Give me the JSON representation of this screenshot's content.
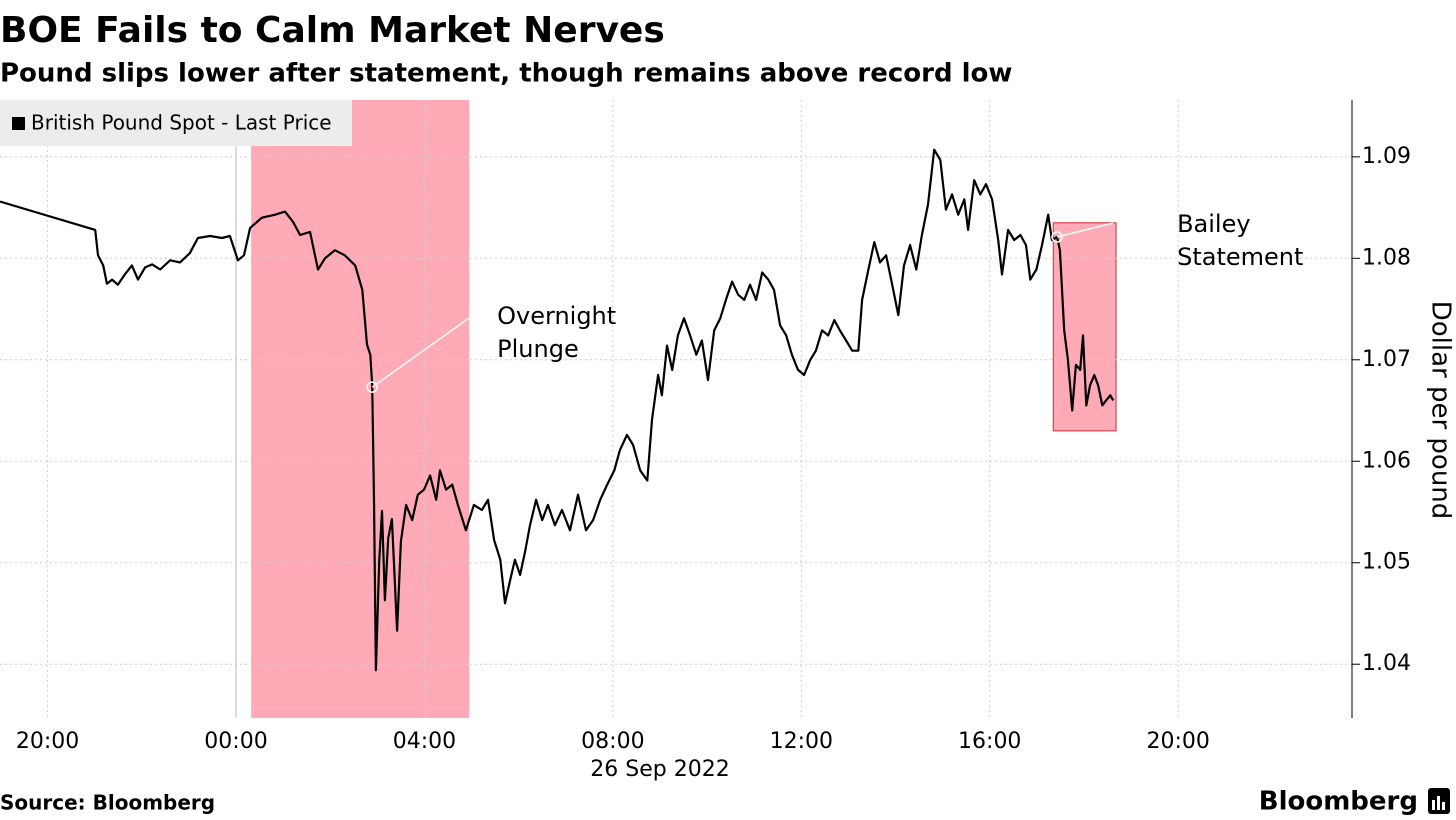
{
  "chart_data": {
    "type": "line",
    "title": "BOE Fails to Calm Market Nerves",
    "subtitle": "Pound slips lower after statement, though remains above record low",
    "y_label": "Dollar per pound",
    "date_label": "26 Sep 2022",
    "source": "Source: Bloomberg",
    "logo": "Bloomberg",
    "grid": true,
    "legend": "top-left",
    "xlim": [
      -5.01,
      23.69
    ],
    "xticks": [
      {
        "value": -4,
        "label": "20:00"
      },
      {
        "value": 0,
        "label": "00:00"
      },
      {
        "value": 4,
        "label": "04:00"
      },
      {
        "value": 8,
        "label": "08:00"
      },
      {
        "value": 12,
        "label": "12:00"
      },
      {
        "value": 16,
        "label": "16:00"
      },
      {
        "value": 20,
        "label": "20:00"
      }
    ],
    "ylim": [
      1.0347,
      1.0956
    ],
    "yticks": [
      1.04,
      1.05,
      1.06,
      1.07,
      1.08,
      1.09
    ],
    "highlights": [
      {
        "x": [
          0.32,
          4.95
        ],
        "color": "#ffaab6"
      },
      {
        "x": [
          17.35,
          18.68
        ],
        "y": [
          1.063,
          1.0835
        ],
        "color": "#ffaab6"
      }
    ],
    "annotations": [
      {
        "lines": [
          "Overnight",
          "Plunge"
        ],
        "x": 2.89,
        "y": 1.0673
      },
      {
        "lines": [
          "Bailey",
          "Statement"
        ],
        "x": 17.43,
        "y": 1.0821
      }
    ],
    "x": [
      -5.01,
      -2.99,
      -2.93,
      -2.82,
      -2.74,
      -2.63,
      -2.51,
      -2.36,
      -2.21,
      -2.08,
      -1.93,
      -1.78,
      -1.61,
      -1.4,
      -1.19,
      -0.98,
      -0.81,
      -0.55,
      -0.3,
      -0.13,
      0.04,
      0.17,
      0.3,
      0.55,
      0.83,
      1.04,
      1.21,
      1.36,
      1.57,
      1.74,
      1.89,
      2.1,
      2.31,
      2.53,
      2.68,
      2.78,
      2.85,
      2.89,
      2.93,
      2.97,
      3.04,
      3.1,
      3.16,
      3.23,
      3.31,
      3.42,
      3.5,
      3.61,
      3.74,
      3.86,
      3.99,
      4.12,
      4.25,
      4.33,
      4.46,
      4.59,
      4.71,
      4.88,
      5.05,
      5.22,
      5.35,
      5.48,
      5.61,
      5.71,
      5.82,
      5.92,
      6.03,
      6.14,
      6.24,
      6.37,
      6.5,
      6.62,
      6.77,
      6.92,
      7.09,
      7.26,
      7.43,
      7.58,
      7.73,
      7.88,
      8.03,
      8.15,
      8.3,
      8.43,
      8.58,
      8.73,
      8.83,
      8.96,
      9.04,
      9.15,
      9.26,
      9.38,
      9.51,
      9.64,
      9.77,
      9.89,
      10.02,
      10.15,
      10.28,
      10.4,
      10.53,
      10.66,
      10.79,
      10.91,
      11.04,
      11.17,
      11.3,
      11.42,
      11.55,
      11.68,
      11.8,
      11.93,
      12.06,
      12.19,
      12.31,
      12.44,
      12.57,
      12.7,
      12.82,
      12.95,
      13.08,
      13.21,
      13.29,
      13.42,
      13.55,
      13.67,
      13.8,
      13.93,
      14.06,
      14.18,
      14.31,
      14.44,
      14.56,
      14.69,
      14.82,
      14.95,
      15.07,
      15.2,
      15.33,
      15.46,
      15.54,
      15.67,
      15.8,
      15.92,
      16.05,
      16.18,
      16.26,
      16.39,
      16.52,
      16.65,
      16.77,
      16.86,
      16.99,
      17.11,
      17.24,
      17.32,
      17.43,
      17.49,
      17.58,
      17.66,
      17.75,
      17.83,
      17.92,
      17.98,
      18.05,
      18.13,
      18.22,
      18.3,
      18.39,
      18.47,
      18.56,
      18.62
    ],
    "series": [
      {
        "name": "British Pound Spot - Last Price",
        "color": "#000000",
        "values": [
          1.0856,
          1.0828,
          1.0803,
          1.0793,
          1.0775,
          1.0779,
          1.0774,
          1.0784,
          1.0793,
          1.0779,
          1.0791,
          1.0794,
          1.0789,
          1.0798,
          1.0796,
          1.0805,
          1.082,
          1.0822,
          1.082,
          1.0822,
          1.0798,
          1.0803,
          1.083,
          1.084,
          1.0843,
          1.0846,
          1.0836,
          1.0823,
          1.0826,
          1.0789,
          1.08,
          1.0808,
          1.0803,
          1.0793,
          1.0769,
          1.0715,
          1.0705,
          1.0675,
          1.0562,
          1.0394,
          1.0501,
          1.0551,
          1.0463,
          1.0524,
          1.0543,
          1.0433,
          1.0521,
          1.0557,
          1.0542,
          1.0567,
          1.0572,
          1.0586,
          1.0562,
          1.0591,
          1.0572,
          1.0577,
          1.0557,
          1.0532,
          1.0557,
          1.0552,
          1.0562,
          1.0522,
          1.0503,
          1.046,
          1.0483,
          1.0503,
          1.0488,
          1.0512,
          1.0537,
          1.0562,
          1.0542,
          1.0557,
          1.0537,
          1.0552,
          1.0532,
          1.0567,
          1.0532,
          1.0542,
          1.0562,
          1.0577,
          1.0591,
          1.0611,
          1.0626,
          1.0616,
          1.0591,
          1.0581,
          1.0641,
          1.0685,
          1.0665,
          1.0714,
          1.069,
          1.0724,
          1.0741,
          1.0724,
          1.0705,
          1.0719,
          1.068,
          1.0729,
          1.0741,
          1.0759,
          1.0777,
          1.0764,
          1.0759,
          1.0774,
          1.0759,
          1.0786,
          1.0779,
          1.0769,
          1.0734,
          1.0724,
          1.0705,
          1.069,
          1.0685,
          1.07,
          1.0709,
          1.0729,
          1.0724,
          1.0739,
          1.0729,
          1.0719,
          1.0709,
          1.0709,
          1.0759,
          1.0788,
          1.0816,
          1.0796,
          1.0803,
          1.0774,
          1.0744,
          1.0793,
          1.0813,
          1.0789,
          1.0823,
          1.0853,
          1.0907,
          1.0897,
          1.0848,
          1.0863,
          1.0843,
          1.0858,
          1.0828,
          1.0877,
          1.0863,
          1.0873,
          1.0858,
          1.0818,
          1.0784,
          1.0828,
          1.0818,
          1.0823,
          1.0813,
          1.0779,
          1.0789,
          1.0813,
          1.0843,
          1.0818,
          1.0821,
          1.0808,
          1.0729,
          1.07,
          1.065,
          1.0695,
          1.069,
          1.0724,
          1.0655,
          1.0675,
          1.0685,
          1.0675,
          1.0655,
          1.066,
          1.0665,
          1.066
        ]
      }
    ]
  }
}
